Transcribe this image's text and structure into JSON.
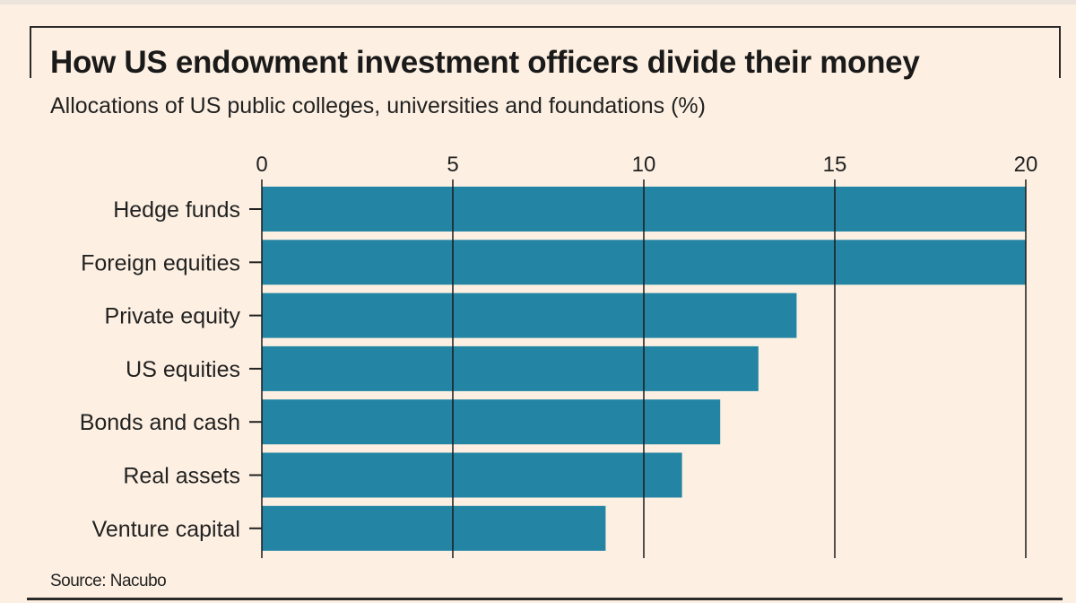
{
  "chart_data": {
    "type": "bar",
    "orientation": "horizontal",
    "title": "How US endowment investment officers divide their money",
    "subtitle": "Allocations of US public colleges, universities and foundations (%)",
    "source": "Source: Nacubo",
    "categories": [
      "Hedge funds",
      "Foreign equities",
      "Private equity",
      "US equities",
      "Bonds and cash",
      "Real assets",
      "Venture capital"
    ],
    "values": [
      20,
      20,
      14,
      13,
      12,
      11,
      9
    ],
    "xlim": [
      0,
      20
    ],
    "xticks": [
      "0",
      "5",
      "10",
      "15",
      "20"
    ],
    "xtick_values": [
      0,
      5,
      10,
      15,
      20
    ],
    "grid": true,
    "colors": {
      "bar": "#2385a3",
      "background": "#fdf0e2",
      "grid": "#1a1a1a"
    }
  }
}
